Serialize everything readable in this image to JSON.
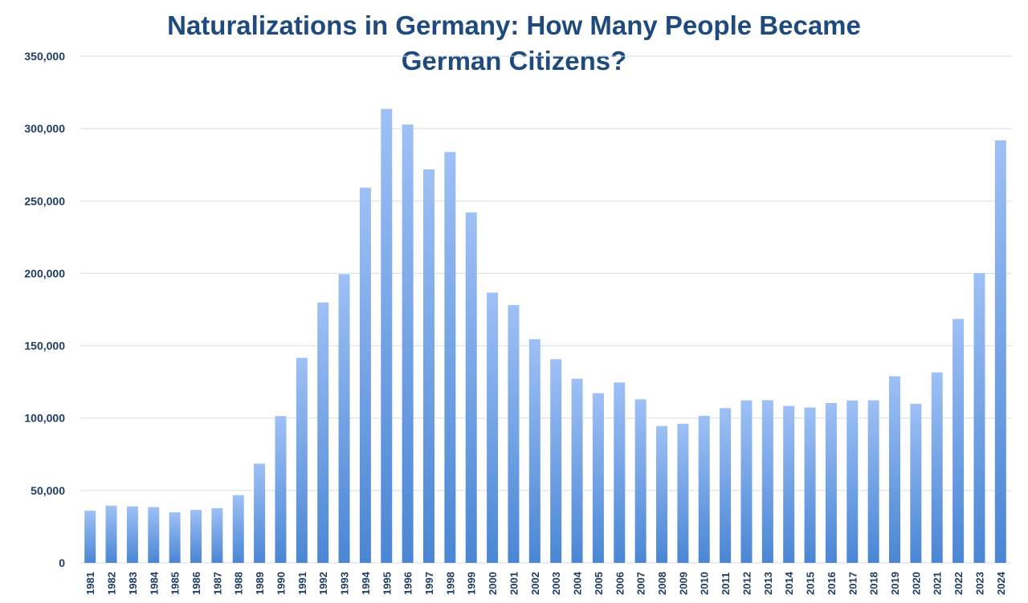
{
  "chart_data": {
    "type": "bar",
    "title": "Naturalizations in Germany: How Many People Became German Citizens?",
    "title_lines": [
      "Naturalizations in Germany: How Many People Became",
      "German Citizens?"
    ],
    "xlabel": "",
    "ylabel": "",
    "ylim": [
      0,
      350000
    ],
    "yticks": [
      0,
      50000,
      100000,
      150000,
      200000,
      250000,
      300000,
      350000
    ],
    "ytick_labels": [
      "0",
      "50,000",
      "100,000",
      "150,000",
      "200,000",
      "250,000",
      "300,000",
      "350,000"
    ],
    "grid": true,
    "legend": "none",
    "bar_color_top": "#9ec0f5",
    "bar_color_bottom": "#4a86d4",
    "title_color": "#1f4a7e",
    "categories": [
      "1981",
      "1982",
      "1983",
      "1984",
      "1985",
      "1986",
      "1987",
      "1988",
      "1989",
      "1990",
      "1991",
      "1992",
      "1993",
      "1994",
      "1995",
      "1996",
      "1997",
      "1998",
      "1999",
      "2000",
      "2001",
      "2002",
      "2003",
      "2004",
      "2005",
      "2006",
      "2007",
      "2008",
      "2009",
      "2010",
      "2011",
      "2012",
      "2013",
      "2014",
      "2015",
      "2016",
      "2017",
      "2018",
      "2019",
      "2020",
      "2021",
      "2022",
      "2023",
      "2024"
    ],
    "values": [
      36000,
      39500,
      39000,
      38500,
      34900,
      36600,
      37800,
      46800,
      68500,
      101400,
      141600,
      179900,
      199400,
      259200,
      313600,
      302800,
      271800,
      283800,
      242100,
      186700,
      178100,
      154500,
      140700,
      127200,
      117200,
      124600,
      113000,
      94500,
      96100,
      101600,
      106900,
      112300,
      112400,
      108400,
      107300,
      110400,
      112200,
      112300,
      128900,
      109900,
      131600,
      168500,
      200100,
      291900
    ]
  }
}
